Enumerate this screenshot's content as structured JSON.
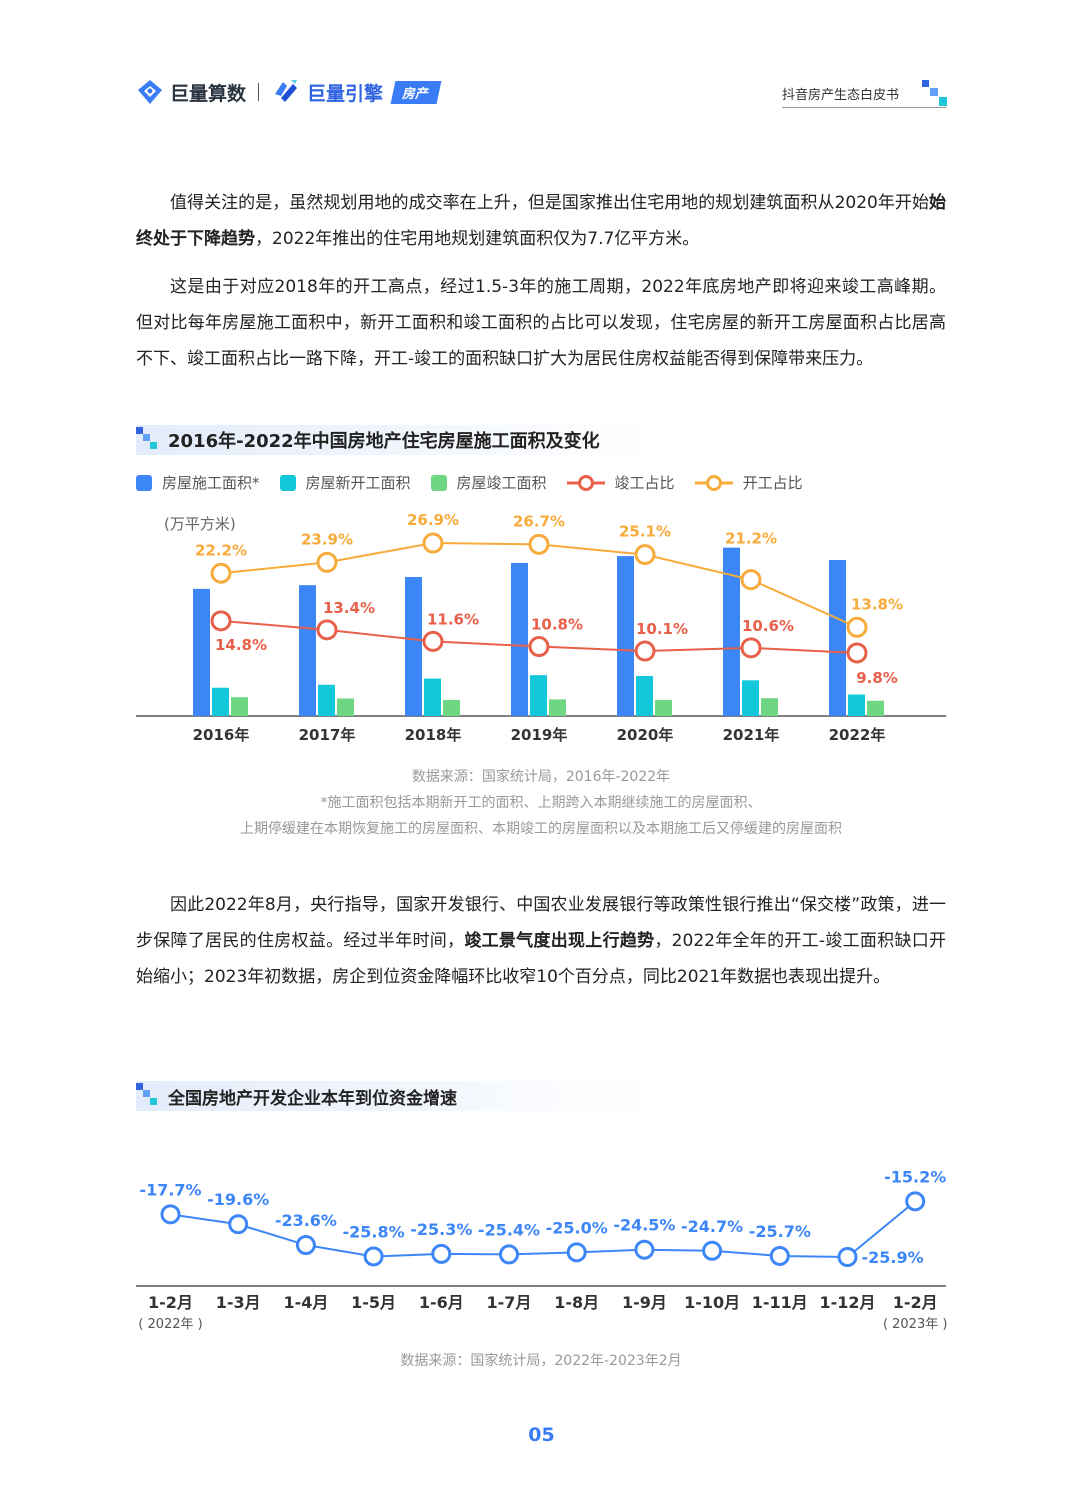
{
  "header": {
    "brand1": "巨量算数",
    "brand2": "巨量引擎",
    "tag": "房产",
    "report_title": "抖音房产生态白皮书"
  },
  "paragraphs": [
    [
      {
        "t": "值得关注的是，虽然规划用地的成交率在上升，但是国家推出住宅用地的规划建筑面积从2020年开始"
      },
      {
        "t": "始终处于下降趋势",
        "b": true
      },
      {
        "t": "，2022年推出的住宅用地规划建筑面积仅为7.7亿平方米。"
      }
    ],
    [
      {
        "t": "这是由于对应2018年的开工高点，经过1.5-3年的施工周期，2022年底房地产即将迎来竣工高峰期。但对比每年房屋施工面积中，新开工面积和竣工面积的占比可以发现，住宅房屋的新开工房屋面积占比居高不下、竣工面积占比一路下降，开工-竣工的面积缺口扩大为居民住房权益能否得到保障带来压力。"
      }
    ],
    [
      {
        "t": "因此2022年8月，央行指导，国家开发银行、中国农业发展银行等政策性银行推出“保交楼”政策，进一步保障了居民的住房权益。经过半年时间，"
      },
      {
        "t": "竣工景气度出现上行趋势",
        "b": true
      },
      {
        "t": "，2022年全年的开工-竣工面积缺口开始缩小；2023年初数据，房企到位资金降幅环比收窄10个百分点，同比2021年数据也表现出提升。"
      }
    ]
  ],
  "chart1": {
    "title": "2016年-2022年中国房地产住宅房屋施工面积及变化",
    "unit": "(万平方米)",
    "source": "数据来源：国家统计局，2016年-2022年",
    "footnote1": "*施工面积包括本期新开工的面积、上期跨入本期继续施工的房屋面积、",
    "footnote2": "上期停缓建在本期恢复施工的房屋面积、本期竣工的房屋面积以及本期施工后又停缓建的房屋面积"
  },
  "chart2": {
    "title": "全国房地产开发企业本年到位资金增速",
    "source": "数据来源：国家统计局，2022年-2023年2月"
  },
  "page_number": "05",
  "chart_data": [
    {
      "type": "bar",
      "categories": [
        "2016年",
        "2017年",
        "2018年",
        "2019年",
        "2020年",
        "2021年",
        "2022年"
      ],
      "ylabel": "(万平方米)",
      "legend_position": "top",
      "series": [
        {
          "name": "房屋施工面积*",
          "kind": "bar",
          "color": "#3d86f7",
          "values": [
            521310,
            536444,
            569987,
            627673,
            655558,
            690319,
            639696
          ]
        },
        {
          "name": "房屋新开工面积",
          "kind": "bar",
          "color": "#14c8dc",
          "values": [
            115911,
            128098,
            153553,
            167463,
            164329,
            146379,
            88135
          ]
        },
        {
          "name": "房屋竣工面积",
          "kind": "bar",
          "color": "#6fd683",
          "values": [
            77185,
            71815,
            66016,
            68011,
            65910,
            73016,
            62539
          ]
        },
        {
          "name": "竣工占比",
          "kind": "line",
          "color": "#e8604a",
          "values": [
            14.8,
            13.4,
            11.6,
            10.8,
            10.1,
            10.6,
            9.8
          ],
          "labels": [
            "14.8%",
            "13.4%",
            "11.6%",
            "10.8%",
            "10.1%",
            "10.6%",
            "9.8%"
          ]
        },
        {
          "name": "开工占比",
          "kind": "line",
          "color": "#f7ab3b",
          "values": [
            22.2,
            23.9,
            26.9,
            26.7,
            25.1,
            21.2,
            13.8
          ],
          "labels": [
            "22.2%",
            "23.9%",
            "26.9%",
            "26.7%",
            "25.1%",
            "21.2%",
            "13.8%"
          ]
        }
      ]
    },
    {
      "type": "line",
      "categories": [
        "1-2月",
        "1-3月",
        "1-4月",
        "1-5月",
        "1-6月",
        "1-7月",
        "1-8月",
        "1-9月",
        "1-10月",
        "1-11月",
        "1-12月",
        "1-2月"
      ],
      "category_notes": {
        "0": "( 2022年 )",
        "11": "( 2023年 )"
      },
      "color": "#3d86f7",
      "series": [
        {
          "values": [
            -17.7,
            -19.6,
            -23.6,
            -25.8,
            -25.3,
            -25.4,
            -25.0,
            -24.5,
            -24.7,
            -25.7,
            -25.9,
            -15.2
          ],
          "labels": [
            "-17.7%",
            "-19.6%",
            "-23.6%",
            "-25.8%",
            "-25.3%",
            "-25.4%",
            "-25.0%",
            "-24.5%",
            "-24.7%",
            "-25.7%",
            "-25.9%",
            "-15.2%"
          ]
        }
      ]
    }
  ]
}
